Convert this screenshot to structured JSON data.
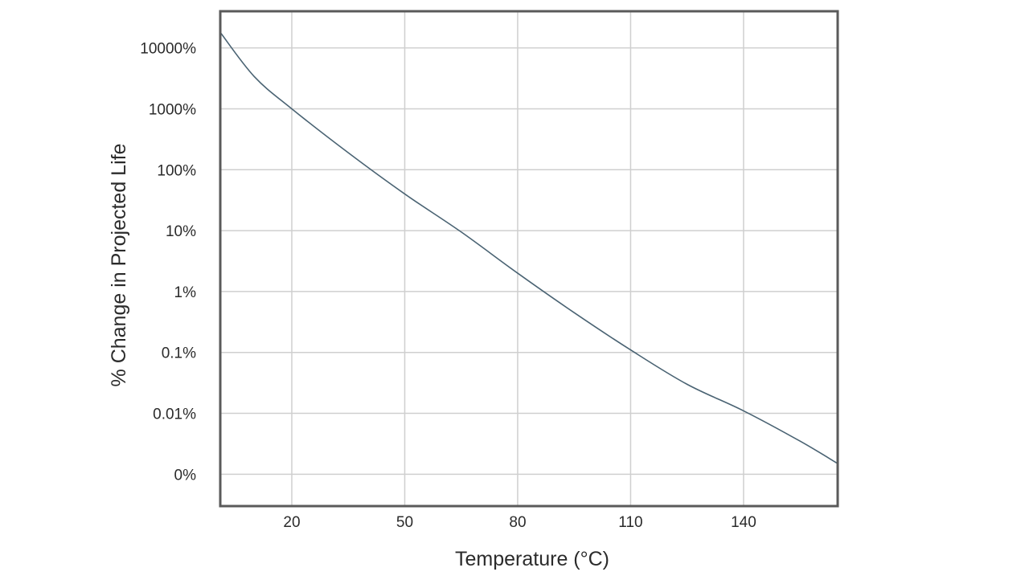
{
  "chart_data": {
    "type": "line",
    "title": "",
    "xlabel": "Temperature (°C)",
    "ylabel": "% Change in Projected Life",
    "x_ticks": [
      20,
      50,
      80,
      110,
      140
    ],
    "x_tick_labels": [
      "20",
      "50",
      "80",
      "110",
      "140"
    ],
    "xlim": [
      1,
      165
    ],
    "y_scale": "log",
    "y_ticks": [
      0.001,
      0.01,
      0.1,
      1,
      10,
      100,
      1000,
      10000
    ],
    "y_tick_labels": [
      "0%",
      "0.01%",
      "0.1%",
      "1%",
      "10%",
      "100%",
      "1000%",
      "10000%"
    ],
    "ylim": [
      0.0003,
      40000
    ],
    "grid": true,
    "colors": {
      "line": "#4a6373",
      "grid": "#cfcfcf",
      "frame": "#5a5a5a"
    },
    "series": [
      {
        "name": "",
        "x": [
          1,
          10,
          20,
          35,
          50,
          65,
          80,
          95,
          110,
          125,
          140,
          155,
          165
        ],
        "y": [
          18000,
          3400,
          1000,
          190,
          40,
          9.5,
          2,
          0.45,
          0.11,
          0.03,
          0.011,
          0.0035,
          0.0015
        ]
      }
    ]
  }
}
